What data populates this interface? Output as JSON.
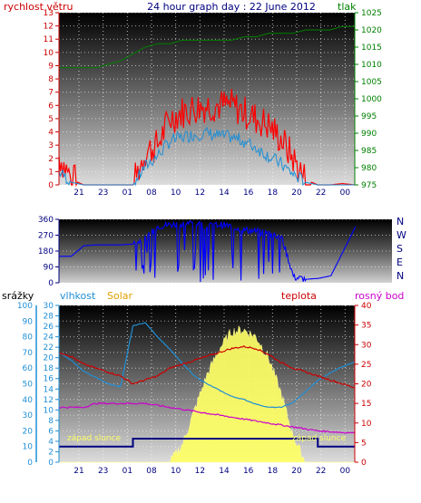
{
  "title": "24 hour graph day : 22 June 2012",
  "colors": {
    "wind": "#ff0000",
    "gust_line": "#1f8fd6",
    "pressure": "#008000",
    "direction": "#0000ff",
    "rain": "#1f8fd6",
    "humidity": "#1f8fd6",
    "solar": "#ffff66",
    "solar_label": "#e0a000",
    "temperature": "#cc0000",
    "dewpoint": "#cc00cc",
    "daylight": "#000080"
  },
  "chart_data": [
    {
      "type": "line",
      "name": "wind-pressure",
      "left_label": "rychlost větru",
      "right_label": "tlak",
      "x_ticks": [
        "21",
        "23",
        "01",
        "08",
        "10",
        "12",
        "14",
        "16",
        "18",
        "20",
        "22",
        "00"
      ],
      "y_left_ticks": [
        "0",
        "1",
        "2",
        "3",
        "4",
        "5",
        "6",
        "7",
        "8",
        "9",
        "10",
        "11",
        "12",
        "13"
      ],
      "y_right_ticks": [
        "975",
        "980",
        "985",
        "990",
        "995",
        "1000",
        "1005",
        "1010",
        "1015",
        "1020",
        "1025"
      ],
      "ylim_left": [
        0,
        13
      ],
      "ylim_right": [
        975,
        1025
      ],
      "hours": [
        19,
        20,
        21,
        22,
        23,
        24,
        25,
        26,
        27,
        28,
        29,
        30,
        31,
        32,
        33,
        34,
        35,
        36,
        37,
        38,
        39,
        40,
        41,
        42,
        43
      ],
      "series": [
        {
          "key": "wind_gust",
          "values": [
            2.2,
            0.4,
            0,
            0,
            0,
            0,
            0,
            2.5,
            3.0,
            5.0,
            5.5,
            5.8,
            6.0,
            6.0,
            6.0,
            5.5,
            5.0,
            4.5,
            3.5,
            2.0,
            0.4,
            0,
            0,
            0.1,
            0
          ]
        },
        {
          "key": "wind_avg",
          "values": [
            1.0,
            0.2,
            0,
            0,
            0,
            0,
            0,
            1.4,
            2.2,
            3.3,
            3.6,
            3.8,
            3.9,
            3.7,
            3.6,
            3.3,
            2.8,
            2.2,
            1.6,
            0.8,
            0.2,
            0,
            0,
            0,
            0
          ]
        },
        {
          "key": "pressure",
          "values": [
            1009,
            1009,
            1009,
            1009,
            1010,
            1011,
            1013,
            1015,
            1016,
            1016,
            1017,
            1017,
            1017,
            1017,
            1017,
            1018,
            1018,
            1019,
            1019,
            1019,
            1020,
            1020,
            1020,
            1021,
            1021
          ]
        }
      ]
    },
    {
      "type": "line",
      "name": "wind-direction",
      "y_left_ticks": [
        "0",
        "90",
        "180",
        "270",
        "360"
      ],
      "y_right_ticks": [
        "N",
        "W",
        "S",
        "E",
        "N"
      ],
      "ylim": [
        0,
        360
      ],
      "hours": [
        19,
        20,
        21,
        22,
        23,
        24,
        25,
        26,
        27,
        28,
        29,
        30,
        31,
        32,
        33,
        34,
        35,
        36,
        37,
        38,
        39,
        40,
        41,
        42,
        43
      ],
      "values": [
        150,
        150,
        210,
        215,
        215,
        215,
        220,
        250,
        320,
        330,
        335,
        340,
        320,
        330,
        320,
        300,
        290,
        280,
        260,
        30,
        20,
        25,
        40,
        180,
        320
      ]
    },
    {
      "type": "line",
      "name": "humidity-temperature",
      "rain_label": "srážky",
      "humidity_label": "vlhkost",
      "solar_label": "Solar",
      "temp_label": "teplota",
      "dew_label": "rosný bod",
      "sunset_label": "západ slunce",
      "x_ticks": [
        "21",
        "23",
        "01",
        "08",
        "10",
        "12",
        "14",
        "16",
        "18",
        "20",
        "22",
        "00"
      ],
      "rain_ticks": [
        "0",
        "10",
        "20",
        "30",
        "40",
        "50",
        "60",
        "70",
        "80",
        "90",
        "100"
      ],
      "hum_ticks": [
        "0",
        "2",
        "4",
        "6",
        "8",
        "10",
        "12",
        "14",
        "16",
        "18",
        "20",
        "22",
        "24",
        "26",
        "28",
        "30"
      ],
      "temp_ticks": [
        "0",
        "5",
        "10",
        "15",
        "20",
        "25",
        "30",
        "35",
        "40"
      ],
      "ylim_hum": [
        0,
        30
      ],
      "ylim_temp": [
        0,
        40
      ],
      "hours": [
        19,
        20,
        21,
        22,
        23,
        24,
        25,
        26,
        27,
        28,
        29,
        30,
        31,
        32,
        33,
        34,
        35,
        36,
        37,
        38,
        39,
        40,
        41,
        42,
        43
      ],
      "series": [
        {
          "key": "solar",
          "values": [
            0,
            0,
            0,
            0,
            0,
            0,
            0,
            0,
            0,
            0,
            100,
            300,
            500,
            650,
            750,
            760,
            720,
            600,
            400,
            150,
            0,
            0,
            0,
            0,
            0
          ]
        },
        {
          "key": "humidity",
          "values": [
            70,
            65,
            58,
            54,
            50,
            48,
            87,
            89,
            80,
            72,
            63,
            55,
            50,
            46,
            42,
            40,
            37,
            35,
            35,
            38,
            45,
            52,
            57,
            61,
            64
          ]
        },
        {
          "key": "temperature",
          "values": [
            28,
            27,
            25,
            24,
            23,
            22,
            20,
            21,
            22,
            24,
            25,
            26,
            27,
            28,
            29,
            29.5,
            29,
            27.5,
            25.5,
            24,
            23,
            22,
            21,
            20,
            19
          ]
        },
        {
          "key": "dewpoint",
          "values": [
            14,
            14,
            14,
            15,
            15,
            15,
            15,
            15,
            14.5,
            14,
            13.5,
            13,
            12.5,
            12,
            11.5,
            11,
            10.5,
            10,
            9.5,
            9,
            8.5,
            8,
            7.8,
            7.6,
            7.5
          ]
        },
        {
          "key": "daylight",
          "values": [
            4,
            4,
            4,
            4,
            4,
            4,
            6,
            6,
            6,
            6,
            6,
            6,
            6,
            6,
            6,
            6,
            6,
            6,
            6,
            6,
            6,
            4,
            4,
            4,
            4
          ]
        }
      ]
    }
  ]
}
